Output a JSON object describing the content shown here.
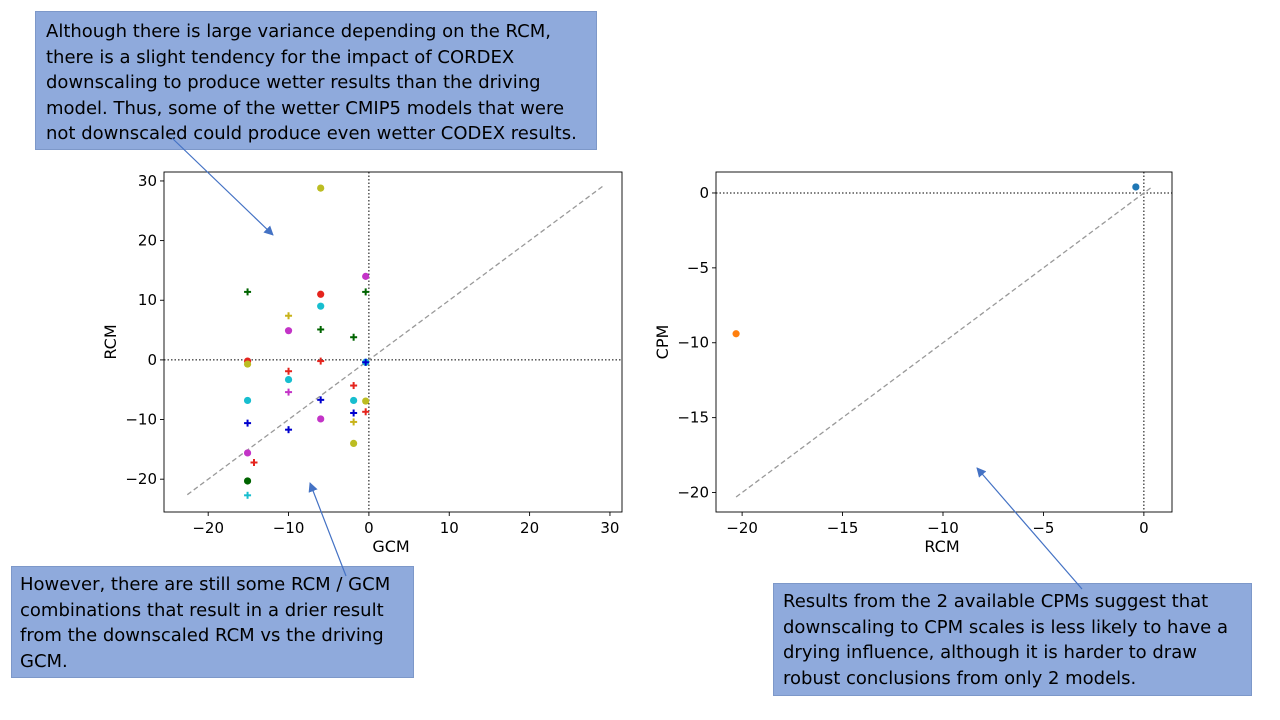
{
  "annotations": {
    "top": "Although there is large variance depending on the RCM, there is a slight tendency for the impact of CORDEX downscaling to produce wetter results than the driving model. Thus, some of the wetter CMIP5 models that were not downscaled could produce even wetter CODEX results.",
    "bottom_left": "However, there are still some RCM / GCM combinations that result in a drier result from the downscaled RCM vs the driving GCM.",
    "bottom_right": "Results from the 2 available CPMs suggest that downscaling to CPM scales is less likely to have a drying influence, although it is harder to draw robust conclusions from only 2 models."
  },
  "colors": {
    "callout_fill": "#8faadc",
    "arrow": "#4472c4",
    "reference_line": "#999999"
  },
  "chart_data": [
    {
      "type": "scatter",
      "xlabel": "GCM",
      "ylabel": "RCM",
      "xlim": [
        -25.5,
        31.5
      ],
      "ylim": [
        -25.5,
        31.5
      ],
      "xticks": [
        -20,
        -10,
        0,
        10,
        20,
        30
      ],
      "yticks": [
        -20,
        -10,
        0,
        10,
        20,
        30
      ],
      "zero_lines": true,
      "identity_line": [
        [
          -22.6,
          -22.6
        ],
        [
          29.1,
          29.1
        ]
      ],
      "points": [
        {
          "x": -6.0,
          "y": 28.8,
          "marker": "circle",
          "color": "#bcbd22"
        },
        {
          "x": -15.1,
          "y": 11.4,
          "marker": "plus",
          "color": "#006400"
        },
        {
          "x": -6.0,
          "y": 11.0,
          "marker": "circle",
          "color": "#e5241d"
        },
        {
          "x": -0.4,
          "y": 11.4,
          "marker": "plus",
          "color": "#006400"
        },
        {
          "x": -0.4,
          "y": 14.0,
          "marker": "circle",
          "color": "#c334c7"
        },
        {
          "x": -10.0,
          "y": 7.4,
          "marker": "plus",
          "color": "#c8b31a"
        },
        {
          "x": -6.0,
          "y": 9.0,
          "marker": "circle",
          "color": "#17becf"
        },
        {
          "x": -10.0,
          "y": 4.9,
          "marker": "circle",
          "color": "#c334c7"
        },
        {
          "x": -6.0,
          "y": 5.1,
          "marker": "plus",
          "color": "#006400"
        },
        {
          "x": -1.9,
          "y": 3.8,
          "marker": "plus",
          "color": "#006400"
        },
        {
          "x": -15.1,
          "y": -0.2,
          "marker": "circle",
          "color": "#e5241d"
        },
        {
          "x": -15.1,
          "y": -0.7,
          "marker": "circle",
          "color": "#bcbd22"
        },
        {
          "x": -6.0,
          "y": -0.2,
          "marker": "plus",
          "color": "#e5241d"
        },
        {
          "x": -0.4,
          "y": -0.4,
          "marker": "circle",
          "color": "#17becf"
        },
        {
          "x": -0.4,
          "y": -0.4,
          "marker": "plus",
          "color": "#0000cd"
        },
        {
          "x": -10.0,
          "y": -1.9,
          "marker": "plus",
          "color": "#e5241d"
        },
        {
          "x": -10.0,
          "y": -3.3,
          "marker": "circle",
          "color": "#17becf"
        },
        {
          "x": -1.9,
          "y": -4.3,
          "marker": "plus",
          "color": "#e5241d"
        },
        {
          "x": -10.0,
          "y": -5.4,
          "marker": "plus",
          "color": "#c334c7"
        },
        {
          "x": -15.1,
          "y": -6.8,
          "marker": "circle",
          "color": "#17becf"
        },
        {
          "x": -6.0,
          "y": -6.7,
          "marker": "plus",
          "color": "#0000cd"
        },
        {
          "x": -1.9,
          "y": -6.8,
          "marker": "circle",
          "color": "#17becf"
        },
        {
          "x": -0.4,
          "y": -6.9,
          "marker": "circle",
          "color": "#bcbd22"
        },
        {
          "x": -1.9,
          "y": -8.9,
          "marker": "plus",
          "color": "#0000cd"
        },
        {
          "x": -0.4,
          "y": -8.7,
          "marker": "plus",
          "color": "#e5241d"
        },
        {
          "x": -6.0,
          "y": -9.9,
          "marker": "circle",
          "color": "#c334c7"
        },
        {
          "x": -1.9,
          "y": -10.4,
          "marker": "plus",
          "color": "#c8b31a"
        },
        {
          "x": -15.1,
          "y": -10.6,
          "marker": "plus",
          "color": "#0000cd"
        },
        {
          "x": -10.0,
          "y": -11.7,
          "marker": "plus",
          "color": "#0000cd"
        },
        {
          "x": -1.9,
          "y": -14.0,
          "marker": "circle",
          "color": "#bcbd22"
        },
        {
          "x": -15.1,
          "y": -15.6,
          "marker": "circle",
          "color": "#c334c7"
        },
        {
          "x": -14.3,
          "y": -17.2,
          "marker": "plus",
          "color": "#e5241d"
        },
        {
          "x": -15.1,
          "y": -20.3,
          "marker": "circle",
          "color": "#006400"
        },
        {
          "x": -15.1,
          "y": -22.7,
          "marker": "plus",
          "color": "#17becf"
        }
      ]
    },
    {
      "type": "scatter",
      "xlabel": "RCM",
      "ylabel": "CPM",
      "xlim": [
        -21.3,
        1.4
      ],
      "ylim": [
        -21.3,
        1.4
      ],
      "xticks": [
        -20,
        -15,
        -10,
        -5,
        0
      ],
      "yticks": [
        -20,
        -15,
        -10,
        -5,
        0
      ],
      "zero_lines": true,
      "identity_line": [
        [
          -20.3,
          -20.3
        ],
        [
          0.4,
          0.4
        ]
      ],
      "points": [
        {
          "x": -0.4,
          "y": 0.4,
          "marker": "circle",
          "color": "#1f77b4"
        },
        {
          "x": -20.3,
          "y": -9.4,
          "marker": "circle",
          "color": "#ff7f0e"
        }
      ]
    }
  ]
}
